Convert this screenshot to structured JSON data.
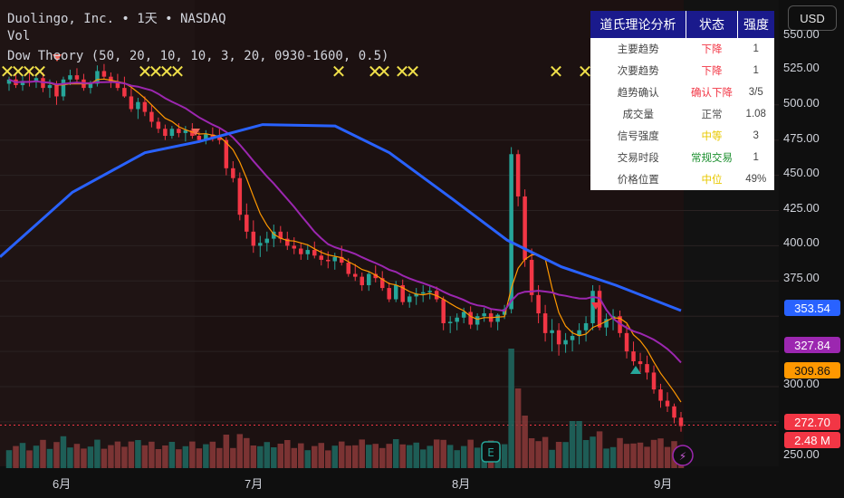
{
  "legend": {
    "line1": "Duolingo, Inc. • 1天 • NASDAQ",
    "line2": "Vol",
    "line3": "Dow Theory (50, 20, 10, 10, 3, 20, 0930-1600, 0.5)"
  },
  "currency_button": "USD",
  "price_axis": {
    "ticks": [
      "550.00",
      "525.00",
      "500.00",
      "475.00",
      "450.00",
      "425.00",
      "400.00",
      "375.00",
      "300.00",
      "250.00"
    ],
    "badges": [
      {
        "label": "353.54",
        "color": "#2962ff"
      },
      {
        "label": "327.84",
        "color": "#9c27b0"
      },
      {
        "label": "309.86",
        "color": "#ff9800"
      },
      {
        "label": "272.70",
        "color": "#f23645"
      },
      {
        "label": "2.48 M",
        "color": "#f23645"
      }
    ]
  },
  "time_axis": {
    "months": [
      "6月",
      "7月",
      "8月",
      "9月"
    ]
  },
  "markers": {
    "x_glyph": "✕",
    "earnings": "E",
    "lightning": "⚡"
  },
  "table": {
    "headers": [
      "道氏理论分析",
      "状态",
      "强度"
    ],
    "rows": [
      {
        "label": "主要趋势",
        "status": "下降",
        "status_class": "c-red",
        "strength": "1"
      },
      {
        "label": "次要趋势",
        "status": "下降",
        "status_class": "c-red",
        "strength": "1"
      },
      {
        "label": "趋势确认",
        "status": "确认下降",
        "status_class": "c-red",
        "strength": "3/5"
      },
      {
        "label": "成交量",
        "status": "正常",
        "status_class": "c-gray",
        "strength": "1.08"
      },
      {
        "label": "信号强度",
        "status": "中等",
        "status_class": "c-yellow",
        "strength": "3"
      },
      {
        "label": "交易时段",
        "status": "常规交易",
        "status_class": "c-green",
        "strength": "1"
      },
      {
        "label": "价格位置",
        "status": "中位",
        "status_class": "c-yellow",
        "strength": "49%"
      }
    ]
  },
  "colors": {
    "up": "#26a69a",
    "down": "#f23645",
    "ma_long": "#2962ff",
    "ma_mid": "#9c27b0",
    "ma_short": "#ff9800",
    "x_marker": "#f0e04a"
  },
  "chart_data": {
    "type": "candlestick",
    "symbol": "Duolingo, Inc.",
    "interval": "1天",
    "exchange": "NASDAQ",
    "y_range": [
      245,
      552
    ],
    "x_labels": [
      "6月",
      "7月",
      "8月",
      "9月"
    ],
    "candles": [
      [
        515,
        520,
        510,
        518
      ],
      [
        518,
        522,
        512,
        514
      ],
      [
        514,
        521,
        510,
        517
      ],
      [
        517,
        524,
        513,
        516
      ],
      [
        516,
        522,
        512,
        519
      ],
      [
        519,
        523,
        509,
        512
      ],
      [
        512,
        518,
        505,
        514
      ],
      [
        514,
        517,
        500,
        506
      ],
      [
        506,
        520,
        503,
        518
      ],
      [
        518,
        525,
        514,
        521
      ],
      [
        521,
        526,
        516,
        518
      ],
      [
        518,
        522,
        510,
        512
      ],
      [
        512,
        517,
        508,
        515
      ],
      [
        515,
        528,
        513,
        524
      ],
      [
        524,
        529,
        518,
        520
      ],
      [
        520,
        523,
        512,
        516
      ],
      [
        516,
        522,
        510,
        512
      ],
      [
        512,
        520,
        505,
        506
      ],
      [
        506,
        512,
        495,
        497
      ],
      [
        497,
        505,
        490,
        502
      ],
      [
        502,
        506,
        492,
        495
      ],
      [
        495,
        500,
        484,
        488
      ],
      [
        488,
        491,
        480,
        483
      ],
      [
        483,
        486,
        475,
        478
      ],
      [
        478,
        485,
        476,
        483
      ],
      [
        483,
        487,
        477,
        480
      ],
      [
        480,
        485,
        474,
        482
      ],
      [
        482,
        487,
        476,
        478
      ],
      [
        478,
        481,
        473,
        475
      ],
      [
        475,
        482,
        472,
        479
      ],
      [
        479,
        484,
        474,
        477
      ],
      [
        477,
        483,
        472,
        475
      ],
      [
        475,
        477,
        450,
        455
      ],
      [
        455,
        460,
        445,
        448
      ],
      [
        448,
        452,
        418,
        422
      ],
      [
        422,
        430,
        405,
        410
      ],
      [
        410,
        418,
        395,
        400
      ],
      [
        400,
        407,
        392,
        402
      ],
      [
        402,
        410,
        396,
        405
      ],
      [
        405,
        415,
        399,
        410
      ],
      [
        410,
        414,
        402,
        405
      ],
      [
        405,
        410,
        397,
        400
      ],
      [
        400,
        406,
        394,
        398
      ],
      [
        398,
        402,
        390,
        394
      ],
      [
        394,
        401,
        390,
        397
      ],
      [
        397,
        403,
        391,
        393
      ],
      [
        393,
        397,
        386,
        390
      ],
      [
        390,
        396,
        384,
        389
      ],
      [
        389,
        395,
        383,
        392
      ],
      [
        392,
        400,
        386,
        388
      ],
      [
        388,
        391,
        378,
        380
      ],
      [
        380,
        387,
        375,
        378
      ],
      [
        378,
        381,
        368,
        372
      ],
      [
        372,
        382,
        368,
        380
      ],
      [
        380,
        386,
        374,
        377
      ],
      [
        377,
        382,
        368,
        370
      ],
      [
        370,
        374,
        360,
        362
      ],
      [
        362,
        375,
        360,
        372
      ],
      [
        372,
        376,
        358,
        360
      ],
      [
        360,
        366,
        356,
        364
      ],
      [
        364,
        370,
        358,
        366
      ],
      [
        366,
        372,
        360,
        367
      ],
      [
        367,
        372,
        362,
        368
      ],
      [
        368,
        371,
        360,
        362
      ],
      [
        362,
        364,
        340,
        345
      ],
      [
        345,
        350,
        338,
        346
      ],
      [
        346,
        352,
        340,
        349
      ],
      [
        349,
        356,
        345,
        353
      ],
      [
        353,
        357,
        341,
        344
      ],
      [
        344,
        352,
        340,
        350
      ],
      [
        350,
        356,
        346,
        352
      ],
      [
        352,
        355,
        342,
        346
      ],
      [
        346,
        352,
        340,
        351
      ],
      [
        351,
        358,
        348,
        355
      ],
      [
        355,
        470,
        352,
        465
      ],
      [
        465,
        468,
        428,
        435
      ],
      [
        435,
        440,
        385,
        390
      ],
      [
        390,
        398,
        360,
        365
      ],
      [
        365,
        372,
        345,
        352
      ],
      [
        352,
        358,
        332,
        338
      ],
      [
        338,
        348,
        325,
        340
      ],
      [
        340,
        345,
        322,
        330
      ],
      [
        330,
        338,
        324,
        333
      ],
      [
        333,
        340,
        325,
        336
      ],
      [
        336,
        345,
        330,
        340
      ],
      [
        340,
        350,
        332,
        345
      ],
      [
        345,
        372,
        340,
        368
      ],
      [
        368,
        372,
        340,
        342
      ],
      [
        342,
        352,
        336,
        348
      ],
      [
        348,
        355,
        340,
        350
      ],
      [
        350,
        354,
        335,
        338
      ],
      [
        338,
        344,
        320,
        325
      ],
      [
        325,
        332,
        315,
        318
      ],
      [
        318,
        324,
        310,
        316
      ],
      [
        316,
        322,
        305,
        310
      ],
      [
        310,
        315,
        295,
        298
      ],
      [
        298,
        302,
        285,
        290
      ],
      [
        290,
        296,
        282,
        286
      ],
      [
        286,
        288,
        274,
        278
      ],
      [
        278,
        282,
        268,
        272
      ]
    ],
    "volume_series": "per-candle volume (up/down colored)",
    "ma_lines": [
      {
        "name": "MA long",
        "color": "#2962ff",
        "last": 353.54
      },
      {
        "name": "MA mid",
        "color": "#9c27b0",
        "last": 327.84
      },
      {
        "name": "MA short",
        "color": "#ff9800",
        "last": 309.86
      }
    ],
    "last_price": 272.7,
    "last_volume": "2.48 M"
  }
}
